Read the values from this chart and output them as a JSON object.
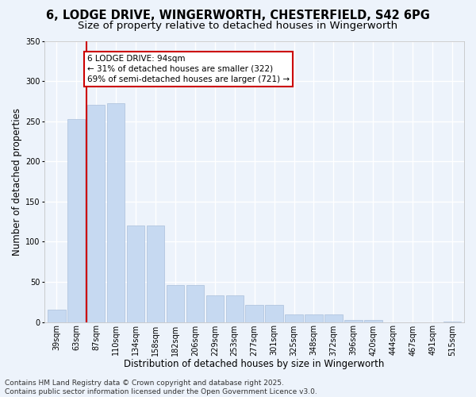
{
  "title_line1": "6, LODGE DRIVE, WINGERWORTH, CHESTERFIELD, S42 6PG",
  "title_line2": "Size of property relative to detached houses in Wingerworth",
  "xlabel": "Distribution of detached houses by size in Wingerworth",
  "ylabel": "Number of detached properties",
  "bar_color": "#c6d9f1",
  "bar_edge_color": "#aabfdb",
  "vline_color": "#cc0000",
  "vline_x": 1.5,
  "annotation_text": "6 LODGE DRIVE: 94sqm\n← 31% of detached houses are smaller (322)\n69% of semi-detached houses are larger (721) →",
  "annotation_box_color": "#ffffff",
  "annotation_box_edgecolor": "#cc0000",
  "categories": [
    "39sqm",
    "63sqm",
    "87sqm",
    "110sqm",
    "134sqm",
    "158sqm",
    "182sqm",
    "206sqm",
    "229sqm",
    "253sqm",
    "277sqm",
    "301sqm",
    "325sqm",
    "348sqm",
    "372sqm",
    "396sqm",
    "420sqm",
    "444sqm",
    "467sqm",
    "491sqm",
    "515sqm"
  ],
  "values": [
    15,
    253,
    270,
    272,
    120,
    120,
    46,
    46,
    33,
    33,
    21,
    21,
    9,
    9,
    9,
    3,
    3,
    0,
    0,
    0,
    1
  ],
  "ylim": [
    0,
    350
  ],
  "yticks": [
    0,
    50,
    100,
    150,
    200,
    250,
    300,
    350
  ],
  "background_color": "#edf3fb",
  "grid_color": "#ffffff",
  "footer_text": "Contains HM Land Registry data © Crown copyright and database right 2025.\nContains public sector information licensed under the Open Government Licence v3.0.",
  "title_fontsize": 10.5,
  "subtitle_fontsize": 9.5,
  "axis_label_fontsize": 8.5,
  "tick_fontsize": 7,
  "footer_fontsize": 6.5,
  "annotation_fontsize": 7.5
}
